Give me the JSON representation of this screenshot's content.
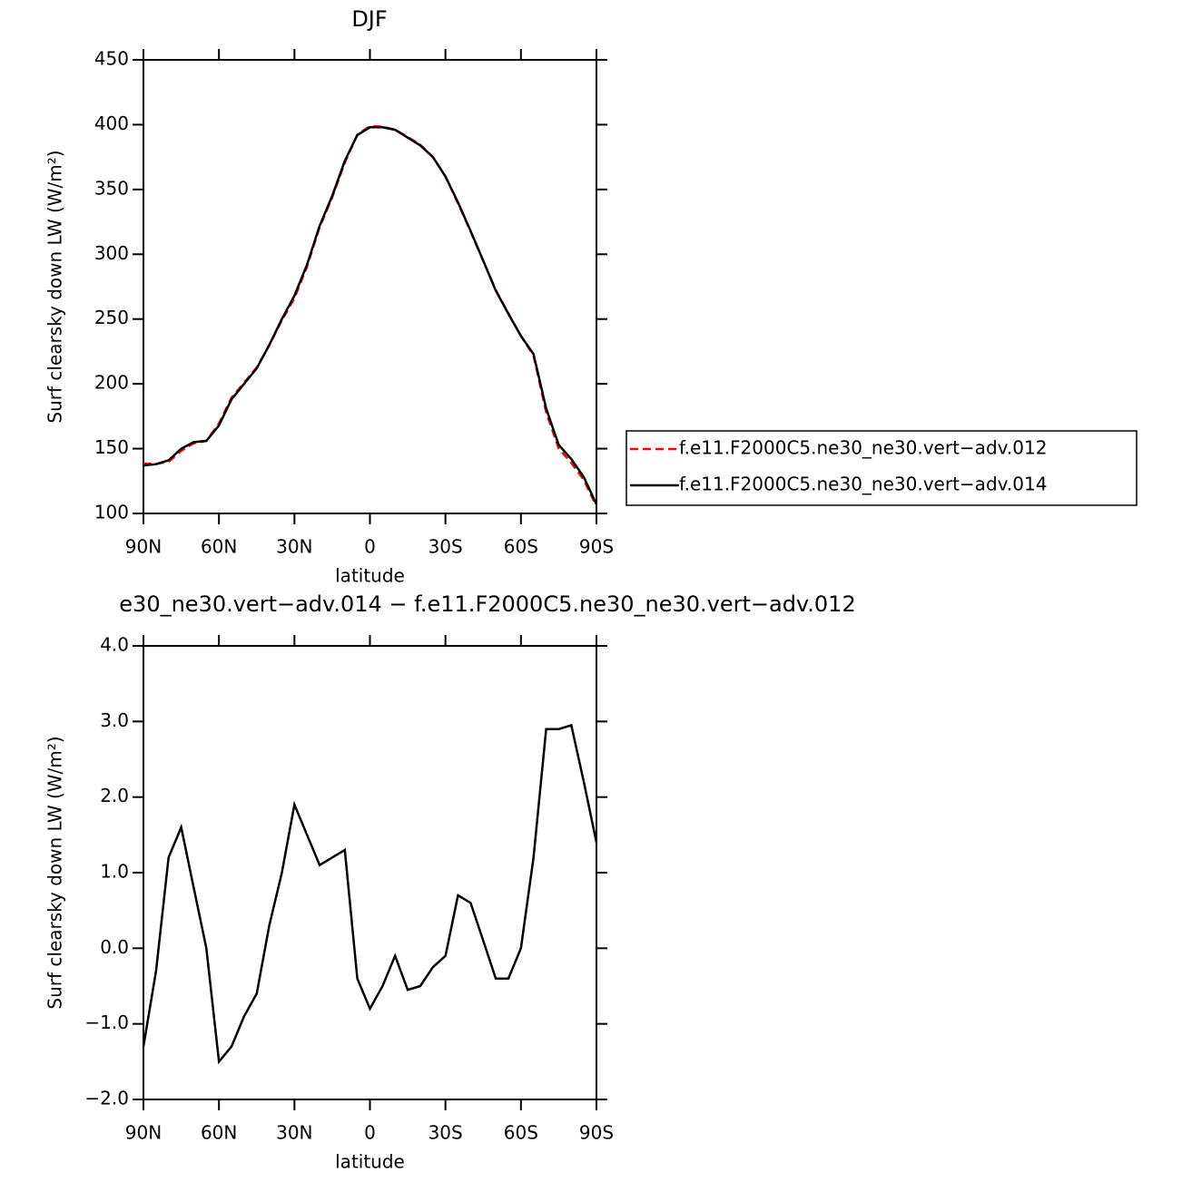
{
  "chart_data": [
    {
      "type": "line",
      "title": "DJF",
      "xlabel": "latitude",
      "ylabel": "Surf clearsky down LW (W/m²)",
      "x": [
        90,
        85,
        80,
        75,
        70,
        65,
        60,
        55,
        50,
        45,
        40,
        35,
        30,
        25,
        20,
        15,
        10,
        5,
        0,
        -5,
        -10,
        -15,
        -20,
        -25,
        -30,
        -35,
        -40,
        -45,
        -50,
        -55,
        -60,
        -65,
        -70,
        -75,
        -80,
        -85,
        -90
      ],
      "series": [
        {
          "name": "f.e11.F2000C5.ne30_ne30.vert−adv.012",
          "color": "#ff0000",
          "line_style": "dashed",
          "values": [
            138.3,
            138.3,
            139.8,
            148.4,
            154.2,
            156,
            169.5,
            189.3,
            200.9,
            212.6,
            229.7,
            249,
            266.1,
            290.5,
            320.9,
            343.8,
            370.7,
            392.4,
            398.8,
            398.5,
            396.1,
            390.55,
            384.5,
            375.25,
            360.1,
            339.3,
            317.4,
            294.9,
            272.4,
            254.4,
            237,
            221.8,
            178.1,
            150.1,
            139.05,
            125.8,
            105.6
          ]
        },
        {
          "name": "f.e11.F2000C5.ne30_ne30.vert−adv.014",
          "color": "#000000",
          "line_style": "solid",
          "values": [
            137,
            138,
            141,
            150,
            155,
            156,
            168,
            188,
            200,
            212,
            230,
            250,
            268,
            292,
            322,
            345,
            372,
            392,
            398,
            398,
            396,
            390,
            384,
            375,
            360,
            340,
            318,
            295,
            272,
            254,
            237,
            223,
            181,
            153,
            142,
            128,
            107
          ]
        }
      ],
      "xlim": [
        90,
        -90
      ],
      "xticks": [
        {
          "value": 90,
          "label": "90N"
        },
        {
          "value": 60,
          "label": "60N"
        },
        {
          "value": 30,
          "label": "30N"
        },
        0,
        {
          "value": -30,
          "label": "30S"
        },
        {
          "value": -60,
          "label": "60S"
        },
        {
          "value": -90,
          "label": "90S"
        }
      ],
      "ylim": [
        100,
        450
      ],
      "yticks": [
        100,
        150,
        200,
        250,
        300,
        350,
        400,
        450
      ],
      "legend": "right"
    },
    {
      "type": "line",
      "title": "e30_ne30.vert−adv.014 − f.e11.F2000C5.ne30_ne30.vert−adv.012",
      "xlabel": "latitude",
      "ylabel": "Surf clearsky down LW (W/m²)",
      "x": [
        90,
        85,
        80,
        75,
        70,
        65,
        60,
        55,
        50,
        45,
        40,
        35,
        30,
        25,
        20,
        15,
        10,
        5,
        0,
        -5,
        -10,
        -15,
        -20,
        -25,
        -30,
        -35,
        -40,
        -45,
        -50,
        -55,
        -60,
        -65,
        -70,
        -75,
        -80,
        -85,
        -90
      ],
      "series": [
        {
          "color": "#000000",
          "line_style": "solid",
          "values": [
            -1.3,
            -0.3,
            1.2,
            1.6,
            0.8,
            0,
            -1.5,
            -1.3,
            -0.9,
            -0.6,
            0.3,
            1,
            1.9,
            1.5,
            1.1,
            1.2,
            1.3,
            -0.4,
            -0.8,
            -0.5,
            -0.1,
            -0.55,
            -0.5,
            -0.25,
            -0.1,
            0.7,
            0.6,
            0.1,
            -0.4,
            -0.4,
            0,
            1.2,
            2.9,
            2.9,
            2.95,
            2.2,
            1.4
          ]
        }
      ],
      "xlim": [
        90,
        -90
      ],
      "xticks": [
        {
          "value": 90,
          "label": "90N"
        },
        {
          "value": 60,
          "label": "60N"
        },
        {
          "value": 30,
          "label": "30N"
        },
        0,
        {
          "value": -30,
          "label": "30S"
        },
        {
          "value": -60,
          "label": "60S"
        },
        {
          "value": -90,
          "label": "90S"
        }
      ],
      "ylim": [
        -2,
        4
      ],
      "yticks": [
        {
          "value": -2,
          "label": "−2.0"
        },
        {
          "value": -1,
          "label": "−1.0"
        },
        {
          "value": 0,
          "label": "0.0"
        },
        {
          "value": 1,
          "label": "1.0"
        },
        {
          "value": 2,
          "label": "2.0"
        },
        {
          "value": 3,
          "label": "3.0"
        },
        {
          "value": 4,
          "label": "4.0"
        }
      ]
    }
  ]
}
